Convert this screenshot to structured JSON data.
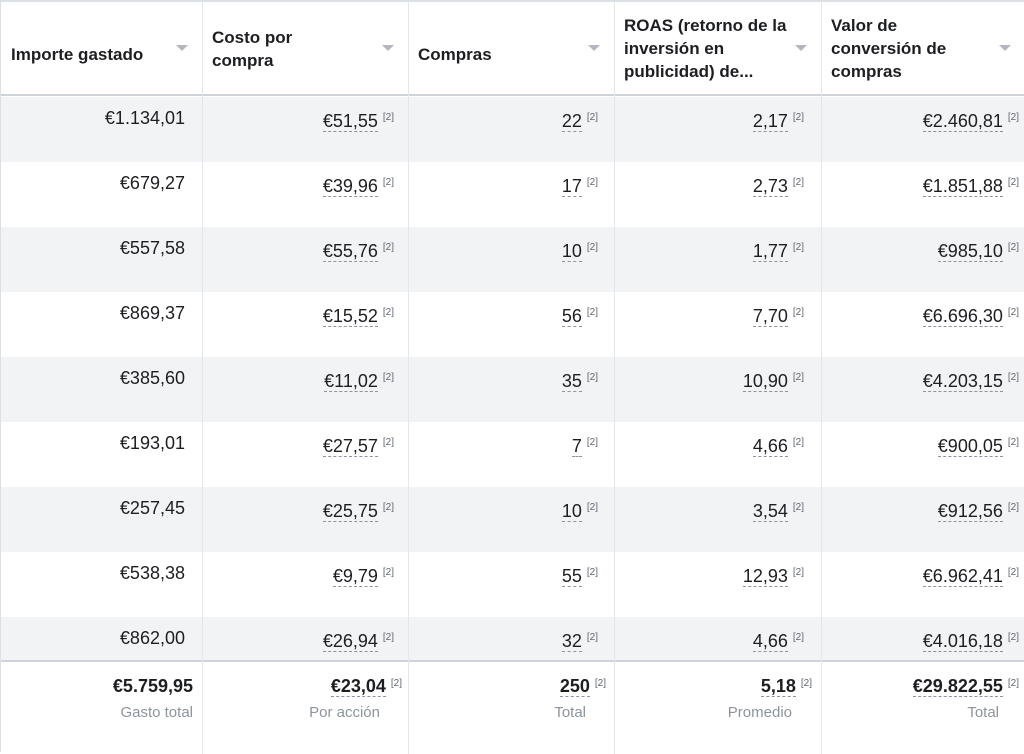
{
  "columns": [
    {
      "label": "Importe gastado"
    },
    {
      "label": "Costo por compra"
    },
    {
      "label": "Compras"
    },
    {
      "label": "ROAS (retorno de la inversión en publicidad) de..."
    },
    {
      "label": "Valor de conversión de compras"
    }
  ],
  "footnote_marker": "[2]",
  "rows": [
    {
      "spend": "€1.134,01",
      "cpa": "€51,55",
      "purchases": "22",
      "roas": "2,17",
      "value": "€2.460,81"
    },
    {
      "spend": "€679,27",
      "cpa": "€39,96",
      "purchases": "17",
      "roas": "2,73",
      "value": "€1.851,88"
    },
    {
      "spend": "€557,58",
      "cpa": "€55,76",
      "purchases": "10",
      "roas": "1,77",
      "value": "€985,10"
    },
    {
      "spend": "€869,37",
      "cpa": "€15,52",
      "purchases": "56",
      "roas": "7,70",
      "value": "€6.696,30"
    },
    {
      "spend": "€385,60",
      "cpa": "€11,02",
      "purchases": "35",
      "roas": "10,90",
      "value": "€4.203,15"
    },
    {
      "spend": "€193,01",
      "cpa": "€27,57",
      "purchases": "7",
      "roas": "4,66",
      "value": "€900,05"
    },
    {
      "spend": "€257,45",
      "cpa": "€25,75",
      "purchases": "10",
      "roas": "3,54",
      "value": "€912,56"
    },
    {
      "spend": "€538,38",
      "cpa": "€9,79",
      "purchases": "55",
      "roas": "12,93",
      "value": "€6.962,41"
    },
    {
      "spend": "€862,00",
      "cpa": "€26,94",
      "purchases": "32",
      "roas": "4,66",
      "value": "€4.016,18"
    }
  ],
  "totals": {
    "spend": {
      "value": "€5.759,95",
      "label": "Gasto total"
    },
    "cpa": {
      "value": "€23,04",
      "label": "Por acción"
    },
    "purchases": {
      "value": "250",
      "label": "Total"
    },
    "roas": {
      "value": "5,18",
      "label": "Promedio"
    },
    "value": {
      "value": "€29.822,55",
      "label": "Total"
    }
  },
  "colors": {
    "row_shade": "#f2f3f5",
    "header_border": "#cfd3d9",
    "muted_text": "#8d949e"
  }
}
